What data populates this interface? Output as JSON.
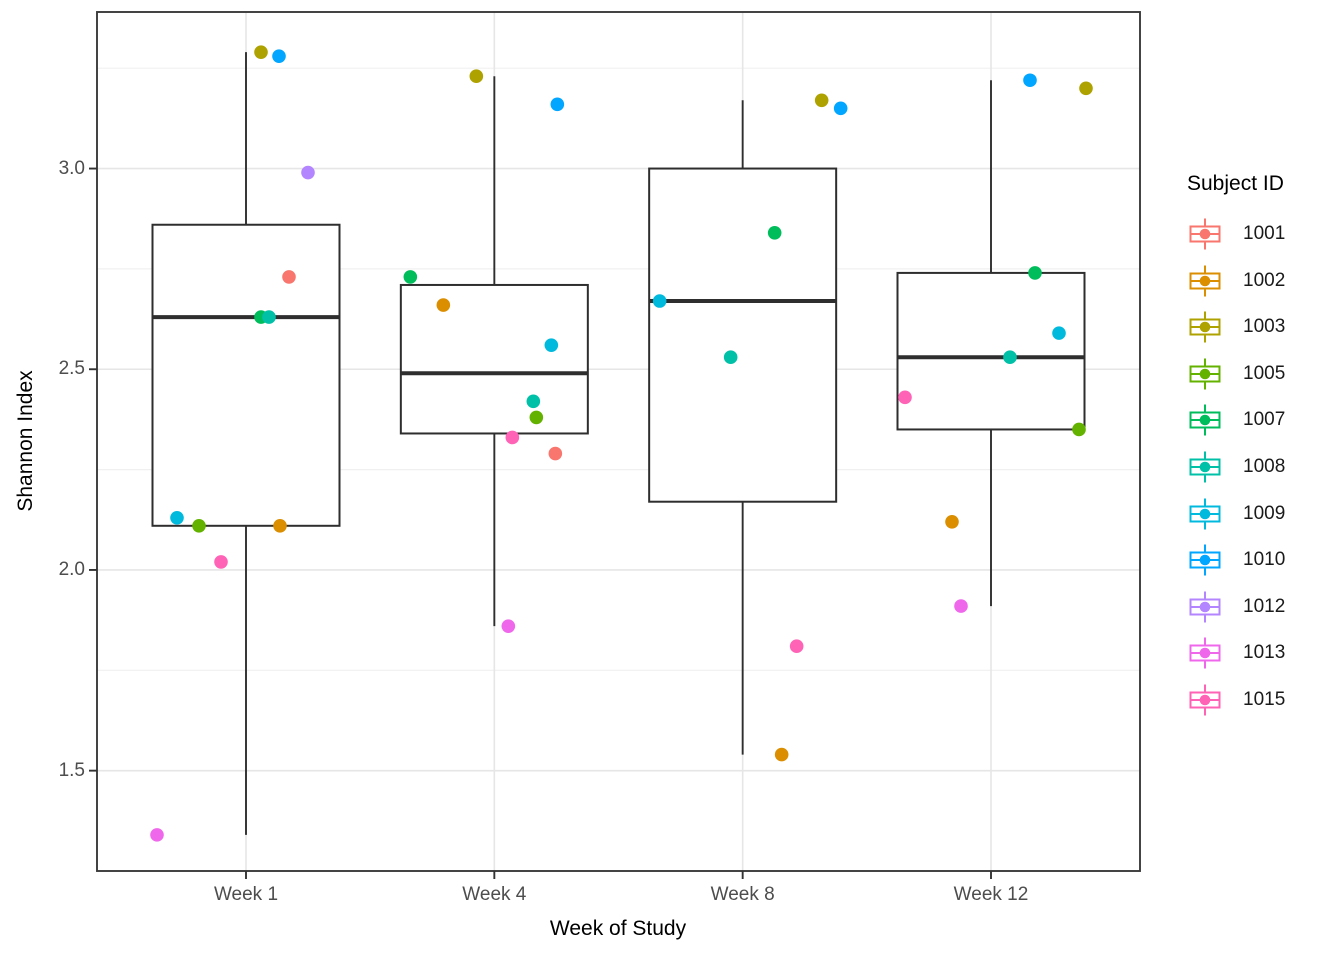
{
  "colors": {
    "background": "#FFFFFF",
    "panel_border": "#3A3A3A",
    "box_stroke": "#2E2E2E",
    "grid_major": "#E6E6E6",
    "grid_minor": "#F0F0F0",
    "tick_mark": "#333333",
    "tick_text": "#4D4D4D",
    "title_text": "#000000"
  },
  "chart_data": {
    "type": "boxplot_jitter",
    "title": "",
    "xlabel": "Week of Study",
    "ylabel": "Shannon Index",
    "legend_title": "Subject ID",
    "legend_position": "right",
    "grid": true,
    "categories": [
      "Week 1",
      "Week 4",
      "Week 8",
      "Week 12"
    ],
    "y_major_ticks": [
      3.0,
      2.5,
      2.0,
      1.5
    ],
    "y_tick_labels": [
      "3.0",
      "2.5",
      "2.0",
      "1.5"
    ],
    "y_minor_ticks": [
      3.25,
      2.75,
      2.25,
      1.75
    ],
    "ylim": [
      1.25,
      3.39
    ],
    "subjects": [
      {
        "id": "1001",
        "color": "#F8766D"
      },
      {
        "id": "1002",
        "color": "#DB8E00"
      },
      {
        "id": "1003",
        "color": "#AEA200"
      },
      {
        "id": "1005",
        "color": "#64B200"
      },
      {
        "id": "1007",
        "color": "#00BD5C"
      },
      {
        "id": "1008",
        "color": "#00C1A7"
      },
      {
        "id": "1009",
        "color": "#00BADE"
      },
      {
        "id": "1010",
        "color": "#00A6FF"
      },
      {
        "id": "1012",
        "color": "#B385FF"
      },
      {
        "id": "1013",
        "color": "#EF67EB"
      },
      {
        "id": "1015",
        "color": "#FF63B6"
      }
    ],
    "boxes": [
      {
        "category": "Week 1",
        "q1": 2.11,
        "median": 2.63,
        "q3": 2.86,
        "whisker_low": 1.34,
        "whisker_high": 3.29
      },
      {
        "category": "Week 4",
        "q1": 2.34,
        "median": 2.49,
        "q3": 2.71,
        "whisker_low": 1.86,
        "whisker_high": 3.23
      },
      {
        "category": "Week 8",
        "q1": 2.17,
        "median": 2.67,
        "q3": 3.0,
        "whisker_low": 1.54,
        "whisker_high": 3.17
      },
      {
        "category": "Week 12",
        "q1": 2.35,
        "median": 2.53,
        "q3": 2.74,
        "whisker_low": 1.91,
        "whisker_high": 3.22
      }
    ],
    "points": [
      {
        "category": "Week 1",
        "subject": "1003",
        "y": 3.29,
        "dx": 15
      },
      {
        "category": "Week 1",
        "subject": "1010",
        "y": 3.28,
        "dx": 33
      },
      {
        "category": "Week 1",
        "subject": "1012",
        "y": 2.99,
        "dx": 62
      },
      {
        "category": "Week 1",
        "subject": "1001",
        "y": 2.73,
        "dx": 43
      },
      {
        "category": "Week 1",
        "subject": "1007",
        "y": 2.63,
        "dx": 15
      },
      {
        "category": "Week 1",
        "subject": "1008",
        "y": 2.63,
        "dx": 23
      },
      {
        "category": "Week 1",
        "subject": "1009",
        "y": 2.13,
        "dx": -69
      },
      {
        "category": "Week 1",
        "subject": "1005",
        "y": 2.11,
        "dx": -47
      },
      {
        "category": "Week 1",
        "subject": "1002",
        "y": 2.11,
        "dx": 34
      },
      {
        "category": "Week 1",
        "subject": "1015",
        "y": 2.02,
        "dx": -25
      },
      {
        "category": "Week 1",
        "subject": "1013",
        "y": 1.34,
        "dx": -89
      },
      {
        "category": "Week 4",
        "subject": "1003",
        "y": 3.23,
        "dx": -18
      },
      {
        "category": "Week 4",
        "subject": "1010",
        "y": 3.16,
        "dx": 63
      },
      {
        "category": "Week 4",
        "subject": "1007",
        "y": 2.73,
        "dx": -84
      },
      {
        "category": "Week 4",
        "subject": "1002",
        "y": 2.66,
        "dx": -51
      },
      {
        "category": "Week 4",
        "subject": "1009",
        "y": 2.56,
        "dx": 57
      },
      {
        "category": "Week 4",
        "subject": "1008",
        "y": 2.42,
        "dx": 39
      },
      {
        "category": "Week 4",
        "subject": "1005",
        "y": 2.38,
        "dx": 42
      },
      {
        "category": "Week 4",
        "subject": "1015",
        "y": 2.33,
        "dx": 18
      },
      {
        "category": "Week 4",
        "subject": "1001",
        "y": 2.29,
        "dx": 61
      },
      {
        "category": "Week 4",
        "subject": "1013",
        "y": 1.86,
        "dx": 14
      },
      {
        "category": "Week 8",
        "subject": "1003",
        "y": 3.17,
        "dx": 79
      },
      {
        "category": "Week 8",
        "subject": "1010",
        "y": 3.15,
        "dx": 98
      },
      {
        "category": "Week 8",
        "subject": "1007",
        "y": 2.84,
        "dx": 32
      },
      {
        "category": "Week 8",
        "subject": "1009",
        "y": 2.67,
        "dx": -83
      },
      {
        "category": "Week 8",
        "subject": "1008",
        "y": 2.53,
        "dx": -12
      },
      {
        "category": "Week 8",
        "subject": "1015",
        "y": 1.81,
        "dx": 54
      },
      {
        "category": "Week 8",
        "subject": "1002",
        "y": 1.54,
        "dx": 39
      },
      {
        "category": "Week 12",
        "subject": "1010",
        "y": 3.22,
        "dx": 39
      },
      {
        "category": "Week 12",
        "subject": "1003",
        "y": 3.2,
        "dx": 95
      },
      {
        "category": "Week 12",
        "subject": "1007",
        "y": 2.74,
        "dx": 44
      },
      {
        "category": "Week 12",
        "subject": "1009",
        "y": 2.59,
        "dx": 68
      },
      {
        "category": "Week 12",
        "subject": "1008",
        "y": 2.53,
        "dx": 19
      },
      {
        "category": "Week 12",
        "subject": "1015",
        "y": 2.43,
        "dx": -86
      },
      {
        "category": "Week 12",
        "subject": "1005",
        "y": 2.35,
        "dx": 88
      },
      {
        "category": "Week 12",
        "subject": "1002",
        "y": 2.12,
        "dx": -39
      },
      {
        "category": "Week 12",
        "subject": "1013",
        "y": 1.91,
        "dx": -30
      }
    ]
  }
}
